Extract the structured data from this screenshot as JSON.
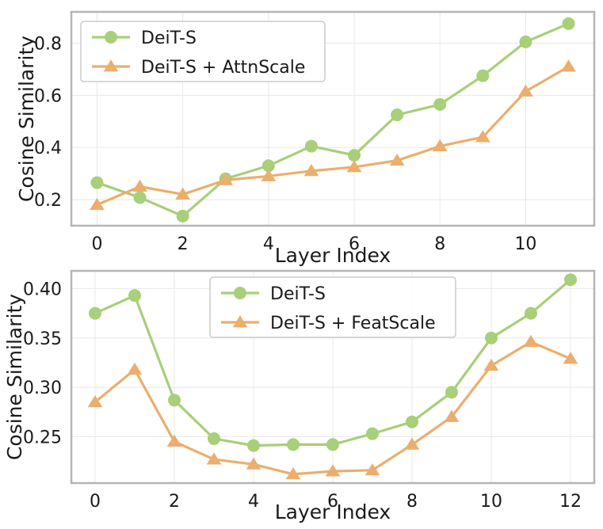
{
  "colors": {
    "deit_s": "#a8cf7a",
    "deit_s_scaled": "#ebae6d",
    "frame": "#b5b5b5",
    "grid": "#e8e8e8"
  },
  "chart_data": [
    {
      "type": "line",
      "title": "",
      "xlabel": "Layer Index",
      "ylabel": "Cosine Similarity",
      "xlim": [
        -0.6,
        11.6
      ],
      "ylim": [
        0.1,
        0.92
      ],
      "xticks": [
        0,
        2,
        4,
        6,
        8,
        10
      ],
      "xtick_labels": [
        "0",
        "2",
        "4",
        "6",
        "8",
        "10"
      ],
      "yticks": [
        0.2,
        0.4,
        0.6,
        0.8
      ],
      "ytick_labels": [
        "0.2",
        "0.4",
        "0.6",
        "0.8"
      ],
      "grid": true,
      "legend_position": "upper-left",
      "x": [
        0,
        1,
        2,
        3,
        4,
        5,
        6,
        7,
        8,
        9,
        10,
        11
      ],
      "series": [
        {
          "name": "DeiT-S",
          "marker": "circle",
          "color": "#a8cf7a",
          "values": [
            0.265,
            0.208,
            0.137,
            0.28,
            0.33,
            0.405,
            0.37,
            0.525,
            0.565,
            0.675,
            0.805,
            0.875
          ]
        },
        {
          "name": "DeiT-S + AttnScale",
          "marker": "triangle",
          "color": "#ebae6d",
          "values": [
            0.18,
            0.25,
            0.22,
            0.275,
            0.29,
            0.31,
            0.325,
            0.35,
            0.405,
            0.44,
            0.615,
            0.71
          ]
        }
      ]
    },
    {
      "type": "line",
      "title": "",
      "xlabel": "Layer Index",
      "ylabel": "Cosine Similarity",
      "xlim": [
        -0.6,
        12.6
      ],
      "ylim": [
        0.203,
        0.418
      ],
      "xticks": [
        0,
        2,
        4,
        6,
        8,
        10,
        12
      ],
      "xtick_labels": [
        "0",
        "2",
        "4",
        "6",
        "8",
        "10",
        "12"
      ],
      "yticks": [
        0.25,
        0.3,
        0.35,
        0.4
      ],
      "ytick_labels": [
        "0.25",
        "0.30",
        "0.35",
        "0.40"
      ],
      "grid": true,
      "legend_position": "upper-center",
      "x": [
        0,
        1,
        2,
        3,
        4,
        5,
        6,
        7,
        8,
        9,
        10,
        11,
        12
      ],
      "series": [
        {
          "name": "DeiT-S",
          "marker": "circle",
          "color": "#a8cf7a",
          "values": [
            0.375,
            0.393,
            0.287,
            0.248,
            0.241,
            0.242,
            0.242,
            0.253,
            0.265,
            0.295,
            0.35,
            0.375,
            0.409
          ]
        },
        {
          "name": "DeiT-S + FeatScale",
          "marker": "triangle",
          "color": "#ebae6d",
          "values": [
            0.285,
            0.318,
            0.245,
            0.227,
            0.222,
            0.212,
            0.215,
            0.216,
            0.242,
            0.27,
            0.322,
            0.346,
            0.329
          ]
        }
      ]
    }
  ]
}
